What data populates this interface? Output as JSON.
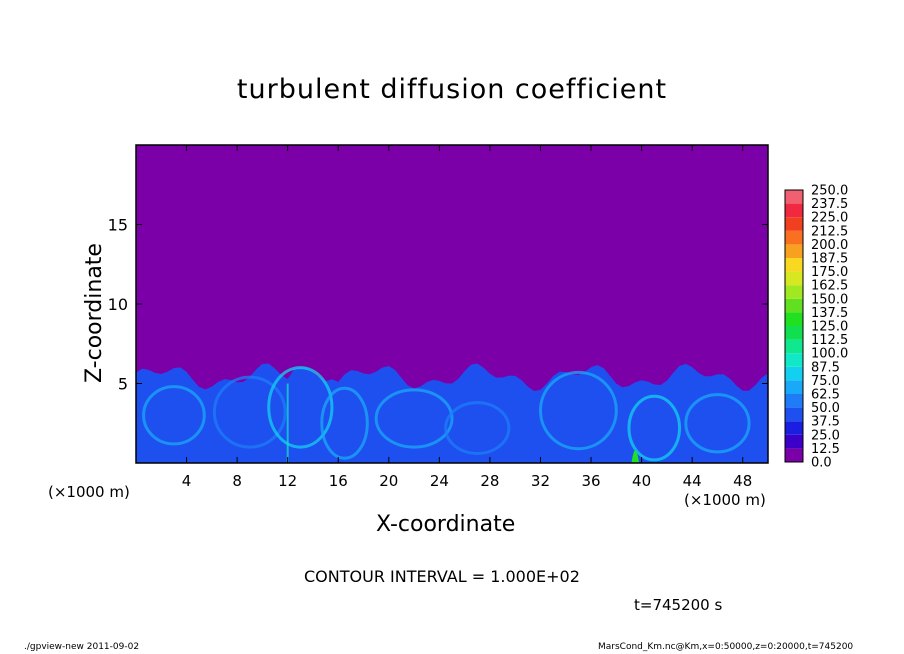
{
  "chart_data": {
    "type": "heatmap",
    "title": "turbulent diffusion coefficient",
    "xlabel": "X-coordinate",
    "ylabel": "Z-coordinate",
    "x_unit": "(×1000 m)",
    "y_unit": "(×1000 m)",
    "xlim": [
      0,
      50
    ],
    "ylim": [
      0,
      20
    ],
    "x_ticks": [
      4,
      8,
      12,
      16,
      20,
      24,
      28,
      32,
      36,
      40,
      44,
      48
    ],
    "y_ticks": [
      5,
      10,
      15
    ],
    "colorbar": {
      "levels": [
        "0.0",
        "12.5",
        "25.0",
        "37.5",
        "50.0",
        "62.5",
        "75.0",
        "87.5",
        "100.0",
        "112.5",
        "125.0",
        "137.5",
        "150.0",
        "162.5",
        "175.0",
        "187.5",
        "200.0",
        "212.5",
        "225.0",
        "237.5",
        "250.0"
      ],
      "colors": [
        "#7b00a8",
        "#3c00c8",
        "#1a1ee0",
        "#1e50f0",
        "#1e7cf8",
        "#1aa8f8",
        "#14d0f0",
        "#10e8c8",
        "#10e890",
        "#10e050",
        "#20e020",
        "#60e020",
        "#a0e820",
        "#d8e820",
        "#f8d820",
        "#f8a020",
        "#f87020",
        "#f04020",
        "#f02840",
        "#f06070"
      ]
    },
    "annotation": "CONTOUR INTERVAL = 1.000E+02",
    "time_label": "t=745200 s",
    "footer_left": "./gpview-new  2011-09-02",
    "footer_right": "MarsCond_Km.nc@Km,x=0:50000,z=0:20000,t=745200"
  },
  "colors": {
    "background": "#7b00a8",
    "mixed_layer": "#1e50f0"
  }
}
